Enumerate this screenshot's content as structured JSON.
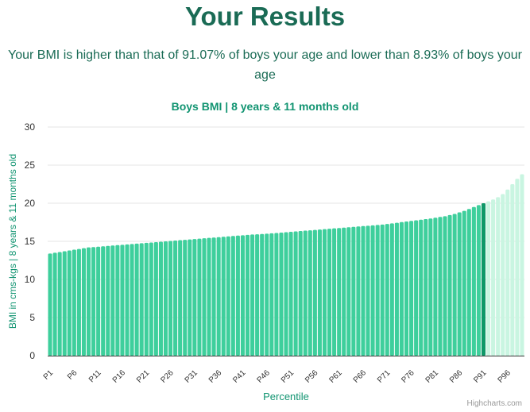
{
  "header": {
    "title": "Your Results",
    "summary": "Your BMI is higher than that of 91.07% of boys your age and lower than 8.93% of boys your age"
  },
  "chart_data": {
    "type": "bar",
    "title": "Boys BMI | 8 years & 11 months old",
    "xlabel": "Percentile",
    "ylabel": "BMI in cms-kgs | 8 years & 11 months old",
    "ylim": [
      0,
      30
    ],
    "yticks": [
      0,
      5,
      10,
      15,
      20,
      25,
      30
    ],
    "grid": true,
    "legend": "none",
    "categories": [
      "P1",
      "P2",
      "P3",
      "P4",
      "P5",
      "P6",
      "P7",
      "P8",
      "P9",
      "P10",
      "P11",
      "P12",
      "P13",
      "P14",
      "P15",
      "P16",
      "P17",
      "P18",
      "P19",
      "P20",
      "P21",
      "P22",
      "P23",
      "P24",
      "P25",
      "P26",
      "P27",
      "P28",
      "P29",
      "P30",
      "P31",
      "P32",
      "P33",
      "P34",
      "P35",
      "P36",
      "P37",
      "P38",
      "P39",
      "P40",
      "P41",
      "P42",
      "P43",
      "P44",
      "P45",
      "P46",
      "P47",
      "P48",
      "P49",
      "P50",
      "P51",
      "P52",
      "P53",
      "P54",
      "P55",
      "P56",
      "P57",
      "P58",
      "P59",
      "P60",
      "P61",
      "P62",
      "P63",
      "P64",
      "P65",
      "P66",
      "P67",
      "P68",
      "P69",
      "P70",
      "P71",
      "P72",
      "P73",
      "P74",
      "P75",
      "P76",
      "P77",
      "P78",
      "P79",
      "P80",
      "P81",
      "P82",
      "P83",
      "P84",
      "P85",
      "P86",
      "P87",
      "P88",
      "P89",
      "P90",
      "P91",
      "P92",
      "P93",
      "P94",
      "P95",
      "P96",
      "P97",
      "P98",
      "P99"
    ],
    "tick_labels": [
      "P1",
      "P6",
      "P11",
      "P16",
      "P21",
      "P26",
      "P31",
      "P36",
      "P41",
      "P46",
      "P51",
      "P56",
      "P61",
      "P66",
      "P71",
      "P76",
      "P81",
      "P86",
      "P91",
      "P96"
    ],
    "values": [
      13.4,
      13.5,
      13.6,
      13.7,
      13.8,
      13.9,
      14.0,
      14.1,
      14.2,
      14.25,
      14.3,
      14.35,
      14.4,
      14.45,
      14.5,
      14.55,
      14.6,
      14.65,
      14.7,
      14.75,
      14.8,
      14.85,
      14.9,
      14.95,
      15.0,
      15.05,
      15.1,
      15.15,
      15.2,
      15.25,
      15.3,
      15.35,
      15.4,
      15.45,
      15.5,
      15.55,
      15.6,
      15.65,
      15.7,
      15.75,
      15.8,
      15.85,
      15.9,
      15.93,
      15.96,
      16.0,
      16.05,
      16.1,
      16.15,
      16.2,
      16.25,
      16.3,
      16.35,
      16.4,
      16.45,
      16.5,
      16.55,
      16.6,
      16.65,
      16.7,
      16.75,
      16.8,
      16.85,
      16.9,
      16.95,
      17.0,
      17.05,
      17.1,
      17.15,
      17.2,
      17.28,
      17.36,
      17.44,
      17.52,
      17.6,
      17.68,
      17.76,
      17.84,
      17.92,
      18.0,
      18.1,
      18.2,
      18.3,
      18.45,
      18.6,
      18.8,
      19.0,
      19.25,
      19.5,
      19.75,
      20.0,
      20.25,
      20.5,
      20.8,
      21.2,
      21.8,
      22.5,
      23.2,
      23.8
    ],
    "highlight_index": 90,
    "colors": {
      "below": "#3ecf9c",
      "highlight": "#0f9868",
      "above": "#c9f5e1",
      "text_accent": "#119471",
      "title": "#1a6b55"
    }
  },
  "credits": "Highcharts.com"
}
